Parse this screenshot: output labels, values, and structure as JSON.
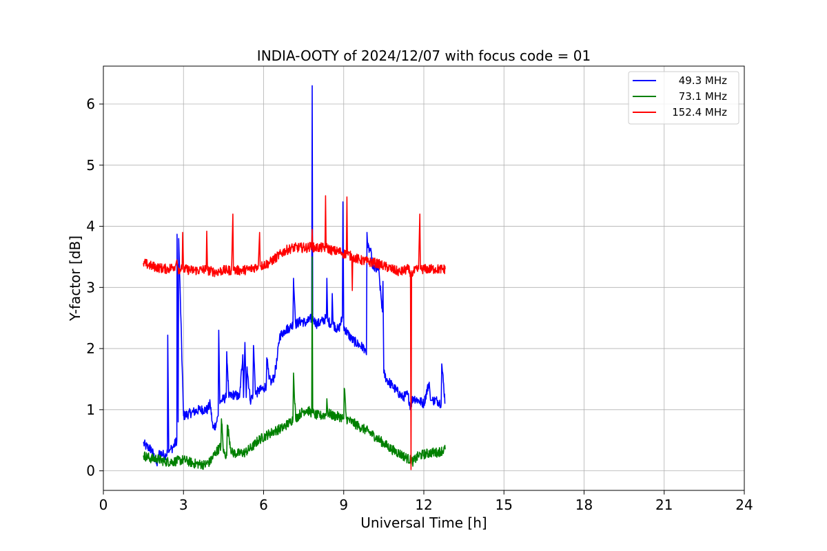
{
  "chart_data": {
    "type": "line",
    "title": "INDIA-OOTY of 2024/12/07 with focus code = 01",
    "xlabel": "Universal Time [h]",
    "ylabel": "Y-factor [dB]",
    "xlim": [
      0,
      24
    ],
    "ylim": [
      -0.32,
      6.62
    ],
    "xticks": [
      0,
      3,
      6,
      9,
      12,
      15,
      18,
      21,
      24
    ],
    "yticks": [
      0,
      1,
      2,
      3,
      4,
      5,
      6
    ],
    "grid": true,
    "legend_position": "top-right",
    "series": [
      {
        "name": "49.3 MHz",
        "color": "#0000ff",
        "x": [
          1.5,
          1.6,
          1.8,
          2.0,
          2.1,
          2.3,
          2.4,
          2.41,
          2.45,
          2.5,
          2.6,
          2.75,
          2.76,
          2.8,
          2.82,
          3.0,
          3.3,
          3.6,
          3.9,
          4.0,
          4.1,
          4.2,
          4.3,
          4.32,
          4.36,
          4.4,
          4.6,
          4.62,
          4.7,
          4.9,
          5.1,
          5.22,
          5.25,
          5.3,
          5.35,
          5.38,
          5.5,
          5.6,
          5.62,
          5.7,
          5.8,
          6.0,
          6.1,
          6.12,
          6.2,
          6.3,
          6.4,
          6.5,
          6.6,
          6.8,
          7.0,
          7.1,
          7.12,
          7.2,
          7.4,
          7.6,
          7.8,
          7.82,
          7.84,
          7.9,
          8.0,
          8.2,
          8.35,
          8.37,
          8.4,
          8.55,
          8.57,
          8.6,
          8.8,
          8.95,
          8.97,
          9.0,
          9.3,
          9.6,
          9.8,
          9.85,
          9.87,
          9.9,
          10.0,
          10.1,
          10.3,
          10.45,
          10.47,
          10.5,
          10.6,
          10.8,
          11.0,
          11.2,
          11.4,
          11.5,
          11.6,
          11.8,
          12.0,
          12.2,
          12.25,
          12.3,
          12.5,
          12.65,
          12.67,
          12.8
        ],
        "values": [
          0.45,
          0.4,
          0.35,
          0.1,
          0.3,
          0.25,
          0.3,
          2.22,
          0.3,
          0.35,
          0.38,
          0.5,
          3.87,
          0.8,
          3.8,
          0.9,
          0.95,
          1.0,
          1.0,
          1.1,
          0.7,
          0.75,
          0.9,
          2.3,
          1.1,
          1.15,
          1.2,
          1.95,
          1.2,
          1.25,
          1.2,
          1.9,
          1.2,
          2.1,
          1.2,
          1.7,
          1.15,
          1.25,
          2.05,
          1.25,
          1.3,
          1.35,
          1.4,
          1.85,
          1.5,
          1.45,
          1.55,
          1.8,
          2.2,
          2.3,
          2.35,
          2.4,
          3.15,
          2.4,
          2.45,
          2.42,
          2.5,
          6.3,
          2.5,
          2.45,
          2.4,
          2.45,
          2.5,
          3.15,
          2.45,
          2.4,
          2.9,
          2.4,
          2.3,
          2.5,
          4.4,
          2.35,
          2.15,
          2.05,
          2.0,
          1.9,
          3.9,
          3.65,
          3.6,
          3.3,
          3.3,
          2.6,
          3.1,
          1.6,
          1.5,
          1.4,
          1.3,
          1.2,
          1.25,
          1.05,
          1.2,
          1.15,
          1.1,
          1.45,
          1.15,
          1.15,
          1.15,
          1.1,
          1.75,
          1.1
        ]
      },
      {
        "name": "73.1 MHz",
        "color": "#008000",
        "x": [
          1.5,
          1.8,
          2.0,
          2.3,
          2.6,
          3.0,
          3.4,
          3.8,
          4.0,
          4.2,
          4.4,
          4.42,
          4.5,
          4.62,
          4.64,
          4.8,
          5.0,
          5.3,
          5.6,
          5.8,
          6.1,
          6.4,
          6.7,
          7.0,
          7.1,
          7.12,
          7.2,
          7.4,
          7.6,
          7.8,
          7.82,
          7.84,
          7.9,
          8.1,
          8.35,
          8.37,
          8.4,
          8.6,
          8.9,
          9.0,
          9.02,
          9.1,
          9.3,
          9.6,
          9.9,
          10.2,
          10.5,
          10.8,
          11.1,
          11.4,
          11.6,
          11.8,
          12.1,
          12.3,
          12.5,
          12.8
        ],
        "values": [
          0.25,
          0.2,
          0.2,
          0.15,
          0.15,
          0.18,
          0.12,
          0.1,
          0.15,
          0.3,
          0.4,
          0.85,
          0.3,
          0.25,
          0.75,
          0.3,
          0.28,
          0.3,
          0.4,
          0.5,
          0.58,
          0.65,
          0.7,
          0.8,
          0.85,
          1.6,
          0.85,
          0.95,
          1.0,
          0.95,
          3.5,
          0.95,
          0.92,
          0.9,
          0.92,
          1.18,
          0.95,
          0.9,
          0.88,
          0.85,
          1.35,
          0.85,
          0.8,
          0.72,
          0.65,
          0.55,
          0.45,
          0.35,
          0.28,
          0.2,
          0.15,
          0.25,
          0.28,
          0.3,
          0.3,
          0.35
        ]
      },
      {
        "name": "152.4 MHz",
        "color": "#ff0000",
        "x": [
          1.5,
          1.8,
          2.1,
          2.4,
          2.7,
          2.75,
          2.8,
          2.95,
          2.97,
          3.0,
          3.3,
          3.6,
          3.85,
          3.87,
          3.9,
          4.2,
          4.5,
          4.8,
          4.85,
          4.87,
          4.9,
          5.2,
          5.5,
          5.8,
          5.85,
          5.87,
          5.9,
          6.2,
          6.5,
          6.8,
          7.1,
          7.4,
          7.7,
          7.8,
          7.82,
          7.84,
          8.0,
          8.3,
          8.32,
          8.34,
          8.6,
          8.9,
          9.0,
          9.1,
          9.12,
          9.14,
          9.3,
          9.32,
          9.34,
          9.6,
          9.9,
          10.2,
          10.5,
          10.8,
          11.1,
          11.4,
          11.5,
          11.52,
          11.54,
          11.6,
          11.8,
          11.85,
          11.87,
          11.9,
          12.1,
          12.4,
          12.6,
          12.8
        ],
        "values": [
          3.4,
          3.35,
          3.32,
          3.3,
          3.35,
          3.45,
          3.3,
          3.3,
          3.9,
          3.3,
          3.28,
          3.28,
          3.3,
          3.92,
          3.28,
          3.25,
          3.28,
          3.28,
          4.2,
          3.28,
          3.28,
          3.28,
          3.3,
          3.35,
          3.9,
          3.35,
          3.35,
          3.4,
          3.5,
          3.6,
          3.65,
          3.65,
          3.65,
          3.7,
          3.95,
          3.65,
          3.65,
          3.65,
          4.5,
          3.65,
          3.6,
          3.58,
          3.55,
          3.55,
          4.48,
          3.55,
          3.5,
          2.95,
          3.5,
          3.45,
          3.42,
          3.4,
          3.35,
          3.3,
          3.25,
          3.3,
          3.25,
          0.02,
          3.2,
          3.25,
          3.3,
          4.2,
          3.3,
          3.3,
          3.3,
          3.3,
          3.3,
          3.3
        ]
      }
    ]
  }
}
